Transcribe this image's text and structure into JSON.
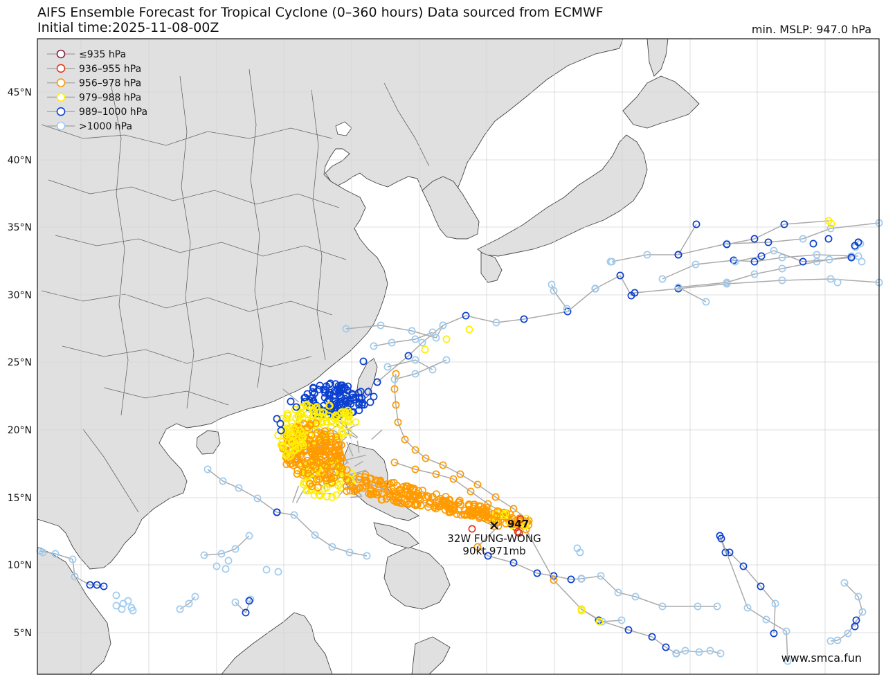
{
  "header": {
    "title": "AIFS Ensemble Forecast for Tropical Cyclone (0–360 hours) Data sourced from ECMWF",
    "subtitle": "Initial time:2025-11-08-00Z",
    "min_mslp": "min. MSLP: 947.0 hPa"
  },
  "legend": [
    {
      "label": "≤935 hPa",
      "color": "#8b1a4a"
    },
    {
      "label": "936–955 hPa",
      "color": "#e5391b"
    },
    {
      "label": "956–978 hPa",
      "color": "#ff9a00"
    },
    {
      "label": "979–988 hPa",
      "color": "#ffee00"
    },
    {
      "label": "989–1000 hPa",
      "color": "#0a3fd0"
    },
    {
      "label": ">1000 hPa",
      "color": "#9ecbf0"
    }
  ],
  "lat_labels": [
    "45°N",
    "40°N",
    "35°N",
    "30°N",
    "25°N",
    "20°N",
    "15°N",
    "10°N",
    "5°N"
  ],
  "storm": {
    "min_label": "947",
    "name": "32W FUNG-WONG",
    "intensity": "90kt 971mb"
  },
  "watermark": "www.smca.fun",
  "colors": {
    "land": "#e0e0e0",
    "ocean": "#ffffff",
    "coast": "#444444",
    "track": "#aaaaaa",
    "grid": "#d4d4d4"
  }
}
